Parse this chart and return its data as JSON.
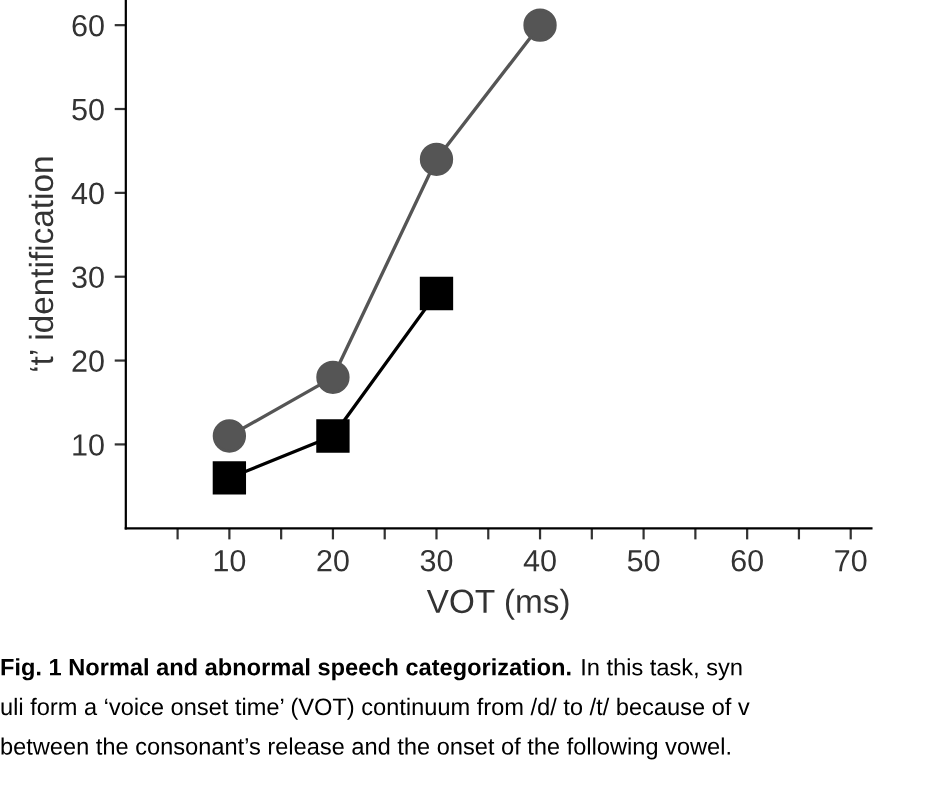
{
  "chart_data": {
    "type": "line",
    "xlabel": "VOT (ms)",
    "ylabel": "‘t’ identification",
    "series": [
      {
        "color": "#555555",
        "marker": "circle",
        "x": [
          10,
          20,
          30,
          40
        ],
        "values": [
          11,
          18,
          44,
          60
        ]
      },
      {
        "color": "#000000",
        "marker": "square",
        "x": [
          10,
          20,
          30
        ],
        "values": [
          6,
          11,
          28
        ]
      }
    ],
    "xlim": [
      0,
      72
    ],
    "ylim": [
      0,
      63
    ],
    "xticks": [
      {
        "value": 5,
        "label": null
      },
      10,
      {
        "value": 15,
        "label": null
      },
      20,
      {
        "value": 25,
        "label": null
      },
      30,
      {
        "value": 35,
        "label": null
      },
      40,
      {
        "value": 45,
        "label": null
      },
      50,
      {
        "value": 55,
        "label": null
      },
      60,
      {
        "value": 65,
        "label": null
      },
      70
    ],
    "yticks": [
      10,
      20,
      30,
      40,
      50,
      60
    ],
    "grid": false,
    "legend": false,
    "annotations": [
      "Fig. 1 Normal and abnormal speech categorization.",
      "In this task, syn",
      "uli form a ‘voice onset time’ (VOT) continuum from /d/ to /t/ because of v",
      "between the consonant’s release and the onset of the following vowel."
    ]
  }
}
